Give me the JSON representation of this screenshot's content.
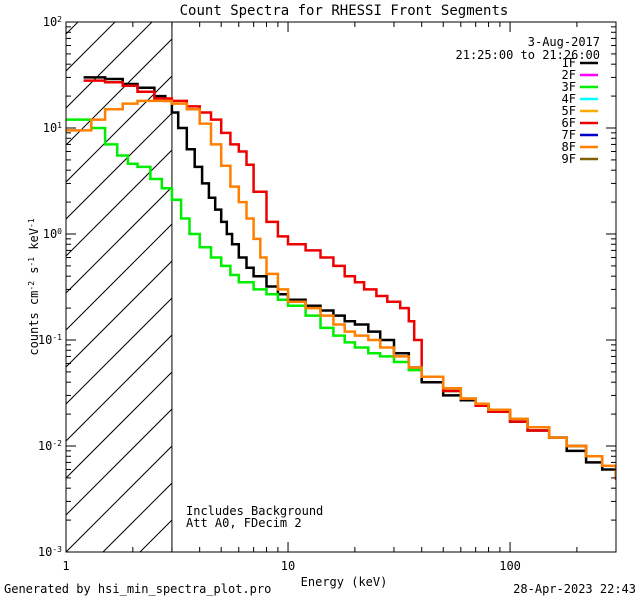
{
  "footer": {
    "left": "Generated by hsi_min_spectra_plot.pro",
    "right": "28-Apr-2023 22:43"
  },
  "chart_data": {
    "type": "line",
    "title": "Count Spectra for RHESSI Front Segments",
    "xlabel": "Energy (keV)",
    "ylabel": "counts cm^-2 s^-1 keV^-1",
    "xscale": "log",
    "yscale": "log",
    "xlim": [
      1,
      300
    ],
    "ylim": [
      0.001,
      100
    ],
    "x_ticks": [
      {
        "value": 1,
        "label": "1"
      },
      {
        "value": 10,
        "label": "10"
      },
      {
        "value": 100,
        "label": "100"
      }
    ],
    "y_ticks": [
      {
        "value": 100,
        "base": "10",
        "exp": "2"
      },
      {
        "value": 10,
        "base": "10",
        "exp": "1"
      },
      {
        "value": 1,
        "base": "10",
        "exp": "0"
      },
      {
        "value": 0.1,
        "base": "10",
        "exp": "-1"
      },
      {
        "value": 0.01,
        "base": "10",
        "exp": "-2"
      },
      {
        "value": 0.001,
        "base": "10",
        "exp": "-3"
      }
    ],
    "date": "3-Aug-2017",
    "time_range": "21:25:00 to 21:26:00",
    "annotations": [
      "Includes Background",
      "Att A0, FDecim 2"
    ],
    "excluded_below_keV": 3,
    "legend": [
      {
        "label": "1F",
        "color": "#000000"
      },
      {
        "label": "2F",
        "color": "#ff00ff"
      },
      {
        "label": "3F",
        "color": "#00ee00"
      },
      {
        "label": "4F",
        "color": "#00ffff"
      },
      {
        "label": "5F",
        "color": "#ffaa00"
      },
      {
        "label": "6F",
        "color": "#ee0000"
      },
      {
        "label": "7F",
        "color": "#0000cc"
      },
      {
        "label": "8F",
        "color": "#ff8000"
      },
      {
        "label": "9F",
        "color": "#806000"
      }
    ],
    "series": [
      {
        "name": "1F",
        "color": "#000000",
        "x": [
          1.2,
          1.5,
          1.8,
          2.1,
          2.5,
          2.8,
          3.0,
          3.2,
          3.5,
          3.8,
          4.1,
          4.4,
          4.7,
          5.0,
          5.3,
          5.6,
          6.0,
          6.5,
          7.0,
          8.0,
          9.0,
          10.0,
          12.0,
          14.0,
          16.0,
          18.0,
          20.0,
          23.0,
          26.0,
          30.0,
          35.0,
          40.0,
          50.0,
          60.0,
          70.0,
          80.0,
          100.0,
          120.0,
          150.0,
          180.0,
          220.0,
          260.0,
          300.0
        ],
        "y": [
          30,
          29,
          26,
          24,
          20,
          18,
          14,
          10,
          6.3,
          4.3,
          3.0,
          2.2,
          1.7,
          1.3,
          1.0,
          0.8,
          0.6,
          0.48,
          0.4,
          0.32,
          0.27,
          0.24,
          0.21,
          0.19,
          0.17,
          0.15,
          0.14,
          0.12,
          0.1,
          0.075,
          0.055,
          0.04,
          0.03,
          0.027,
          0.024,
          0.021,
          0.017,
          0.014,
          0.012,
          0.009,
          0.007,
          0.006,
          0.005
        ]
      },
      {
        "name": "3F",
        "color": "#00ee00",
        "x": [
          1.0,
          1.3,
          1.5,
          1.7,
          1.9,
          2.1,
          2.4,
          2.7,
          3.0,
          3.3,
          3.6,
          4.0,
          4.5,
          5.0,
          5.5,
          6.0,
          7.0,
          8.0,
          9.0,
          10.0,
          12.0,
          14.0,
          16.0,
          18.0,
          20.0,
          23.0,
          26.0,
          30.0,
          35.0,
          40.0,
          50.0,
          60.0,
          70.0,
          80.0,
          100.0,
          120.0,
          150.0,
          180.0,
          220.0,
          260.0,
          300.0
        ],
        "y": [
          12,
          10,
          7,
          5.5,
          4.6,
          4.3,
          3.3,
          2.7,
          2.1,
          1.4,
          1.0,
          0.75,
          0.6,
          0.5,
          0.41,
          0.35,
          0.3,
          0.27,
          0.24,
          0.21,
          0.17,
          0.13,
          0.11,
          0.095,
          0.085,
          0.075,
          0.07,
          0.062,
          0.052,
          0.045,
          0.033,
          0.028,
          0.025,
          0.022,
          0.018,
          0.015,
          0.012,
          0.01,
          0.008,
          0.0065,
          0.005
        ]
      },
      {
        "name": "6F",
        "color": "#ee0000",
        "x": [
          1.2,
          1.5,
          1.8,
          2.1,
          2.5,
          3.0,
          3.5,
          4.0,
          4.5,
          5.0,
          5.5,
          6.0,
          6.5,
          7.0,
          8.0,
          9.0,
          10.0,
          12.0,
          14.0,
          16.0,
          18.0,
          20.0,
          22.0,
          25.0,
          28.0,
          32.0,
          35.0,
          37.0,
          40.0,
          50.0,
          60.0,
          70.0,
          80.0,
          100.0,
          120.0,
          150.0,
          180.0,
          220.0,
          260.0,
          300.0
        ],
        "y": [
          28,
          27,
          25,
          22,
          19,
          18,
          16,
          14,
          12,
          9,
          7,
          6,
          4.5,
          2.5,
          1.3,
          0.95,
          0.8,
          0.7,
          0.6,
          0.5,
          0.4,
          0.35,
          0.3,
          0.26,
          0.23,
          0.2,
          0.15,
          0.1,
          0.045,
          0.033,
          0.028,
          0.024,
          0.021,
          0.017,
          0.014,
          0.012,
          0.01,
          0.008,
          0.0065,
          0.0048
        ]
      },
      {
        "name": "8F",
        "color": "#ff8000",
        "x": [
          1.0,
          1.3,
          1.5,
          1.8,
          2.1,
          2.5,
          3.0,
          3.5,
          4.0,
          4.5,
          5.0,
          5.5,
          6.0,
          6.5,
          7.0,
          7.5,
          8.0,
          9.0,
          10.0,
          12.0,
          14.0,
          16.0,
          18.0,
          20.0,
          23.0,
          26.0,
          30.0,
          35.0,
          40.0,
          50.0,
          60.0,
          70.0,
          80.0,
          100.0,
          120.0,
          150.0,
          180.0,
          220.0,
          260.0,
          300.0
        ],
        "y": [
          9.5,
          12,
          15,
          17,
          18,
          18,
          17,
          15,
          11,
          7,
          4.4,
          2.8,
          2.0,
          1.4,
          0.9,
          0.6,
          0.42,
          0.3,
          0.23,
          0.2,
          0.17,
          0.14,
          0.12,
          0.11,
          0.1,
          0.085,
          0.07,
          0.055,
          0.045,
          0.035,
          0.028,
          0.025,
          0.022,
          0.018,
          0.015,
          0.012,
          0.01,
          0.008,
          0.0065,
          0.005
        ]
      }
    ]
  }
}
